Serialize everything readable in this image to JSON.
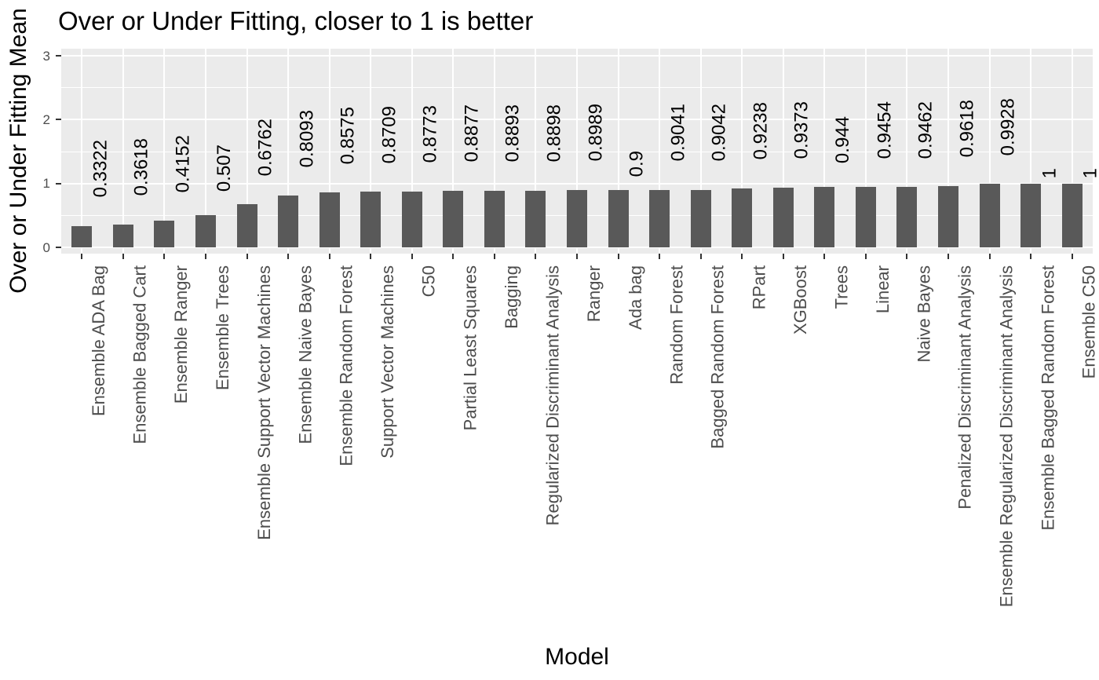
{
  "chart_data": {
    "type": "bar",
    "title": "Over or Under Fitting, closer to 1 is better",
    "xlabel": "Model",
    "ylabel": "Over or Under Fitting Mean",
    "categories": [
      "Ensemble ADA Bag",
      "Ensemble Bagged Cart",
      "Ensemble Ranger",
      "Ensemble Trees",
      "Ensemble Support Vector Machines",
      "Ensemble Naive Bayes",
      "Ensemble Random Forest",
      "Support Vector Machines",
      "C50",
      "Partial Least Squares",
      "Bagging",
      "Regularized Discriminant Analysis",
      "Ranger",
      "Ada bag",
      "Random Forest",
      "Bagged Random Forest",
      "RPart",
      "XGBoost",
      "Trees",
      "Linear",
      "Naive Bayes",
      "Penalized Discriminant Analysis",
      "Ensemble Regularized Discriminant Analysis",
      "Ensemble Bagged Random Forest",
      "Ensemble C50"
    ],
    "values": [
      0.3322,
      0.3618,
      0.4152,
      0.507,
      0.6762,
      0.8093,
      0.8575,
      0.8709,
      0.8773,
      0.8877,
      0.8893,
      0.8898,
      0.8989,
      0.9,
      0.9041,
      0.9042,
      0.9238,
      0.9373,
      0.944,
      0.9454,
      0.9462,
      0.9618,
      0.9928,
      1,
      1
    ],
    "value_labels": [
      "0.3322",
      "0.3618",
      "0.4152",
      "0.507",
      "0.6762",
      "0.8093",
      "0.8575",
      "0.8709",
      "0.8773",
      "0.8877",
      "0.8893",
      "0.8898",
      "0.8989",
      "0.9",
      "0.9041",
      "0.9042",
      "0.9238",
      "0.9373",
      "0.944",
      "0.9454",
      "0.9462",
      "0.9618",
      "0.9928",
      "1",
      "1"
    ],
    "yticks": [
      0,
      1,
      2,
      3
    ],
    "ytick_labels": [
      "0",
      "1",
      "2",
      "3"
    ],
    "yminor": [
      0.5,
      1.5,
      2.5
    ],
    "ylim": [
      -0.1,
      3.11
    ],
    "grid": true,
    "legend": "none",
    "colors": {
      "bar": "#595959",
      "panel_background": "#EBEBEB",
      "grid_line": "#FFFFFF",
      "axis_text": "#4D4D4D",
      "tick_mark": "#333333",
      "title_text": "#000000",
      "value_label_text": "#000000",
      "figure_background": "#FFFFFF"
    }
  }
}
